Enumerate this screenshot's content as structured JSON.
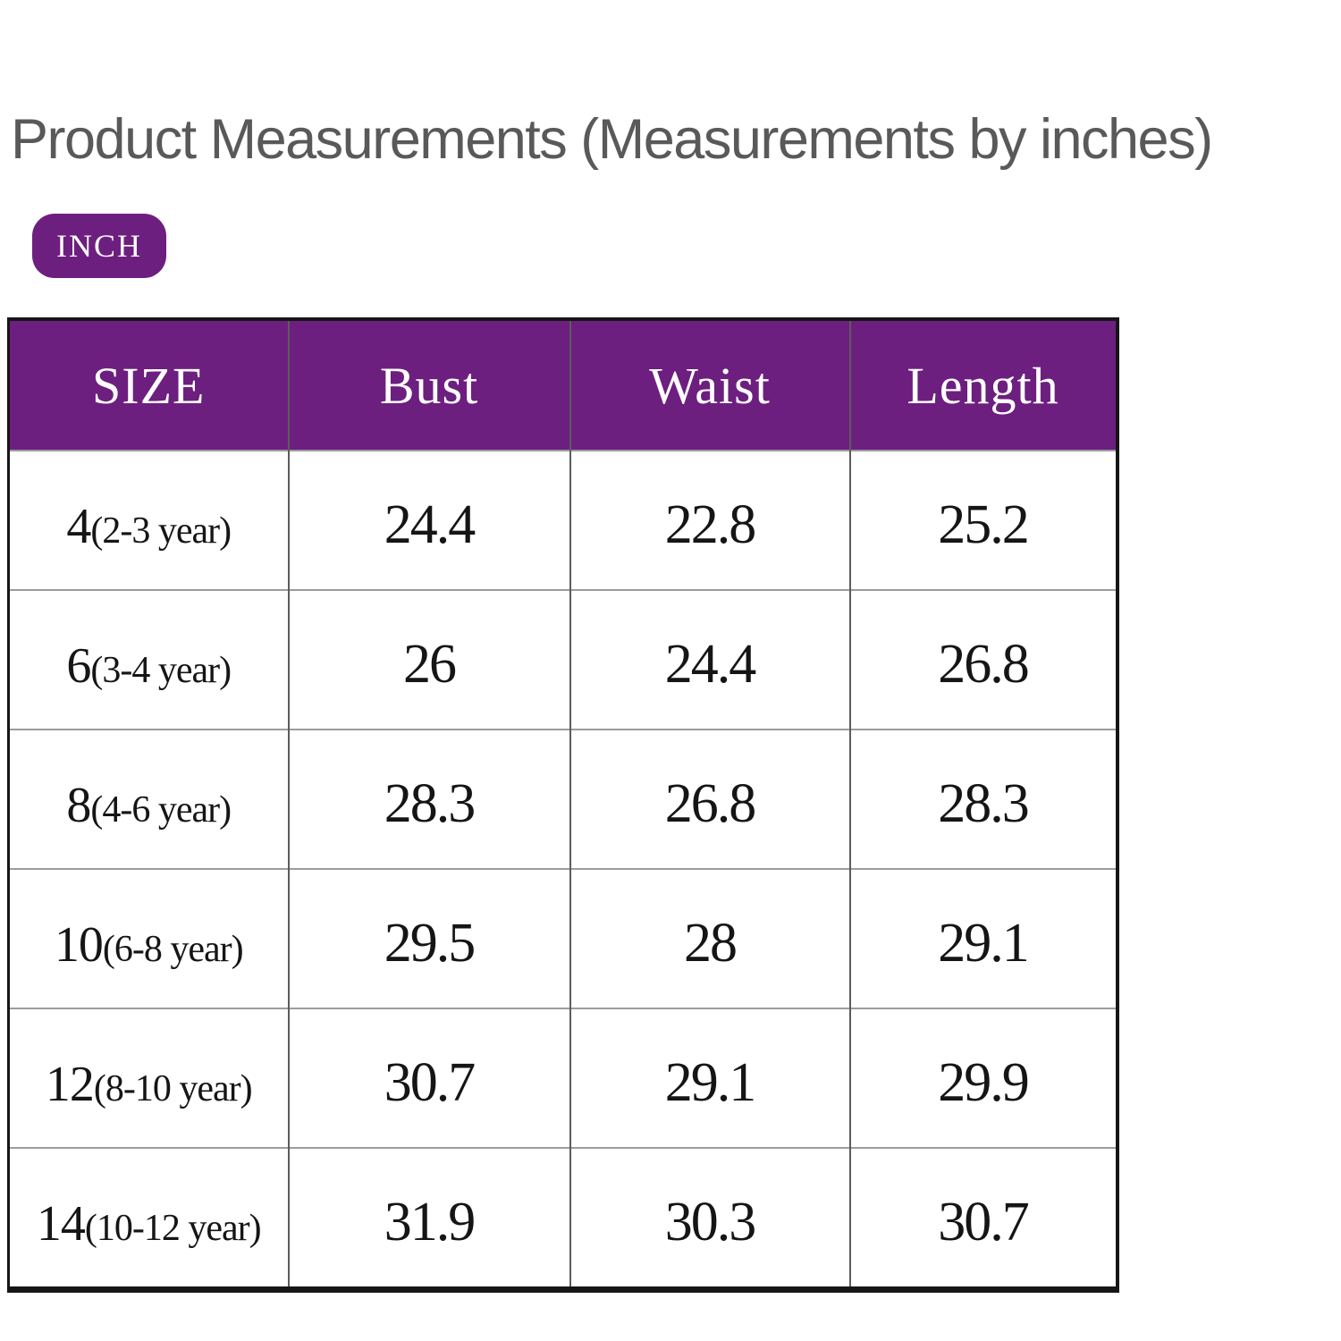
{
  "page_title": "Product Measurements (Measurements by inches)",
  "unit_badge": {
    "label": "INCH"
  },
  "colors": {
    "accent_purple": "#6D1F7F",
    "title_gray": "#595959",
    "header_text": "#FFFFFF",
    "row_line_gray": "#9C9C9C",
    "table_border_black": "#161616"
  },
  "chart_data": {
    "type": "table",
    "title": "Product Measurements (Measurements by inches)",
    "unit": "INCH",
    "columns": [
      "SIZE",
      "Bust",
      "Waist",
      "Length"
    ],
    "rows": [
      {
        "size": "4",
        "age_range": "(2-3 year)",
        "bust": "24.4",
        "waist": "22.8",
        "length": "25.2"
      },
      {
        "size": "6",
        "age_range": "(3-4 year)",
        "bust": "26",
        "waist": "24.4",
        "length": "26.8"
      },
      {
        "size": "8",
        "age_range": "(4-6 year)",
        "bust": "28.3",
        "waist": "26.8",
        "length": "28.3"
      },
      {
        "size": "10",
        "age_range": "(6-8 year)",
        "bust": "29.5",
        "waist": "28",
        "length": "29.1"
      },
      {
        "size": "12",
        "age_range": "(8-10 year)",
        "bust": "30.7",
        "waist": "29.1",
        "length": "29.9"
      },
      {
        "size": "14",
        "age_range": "(10-12 year)",
        "bust": "31.9",
        "waist": "30.3",
        "length": "30.7"
      }
    ]
  }
}
